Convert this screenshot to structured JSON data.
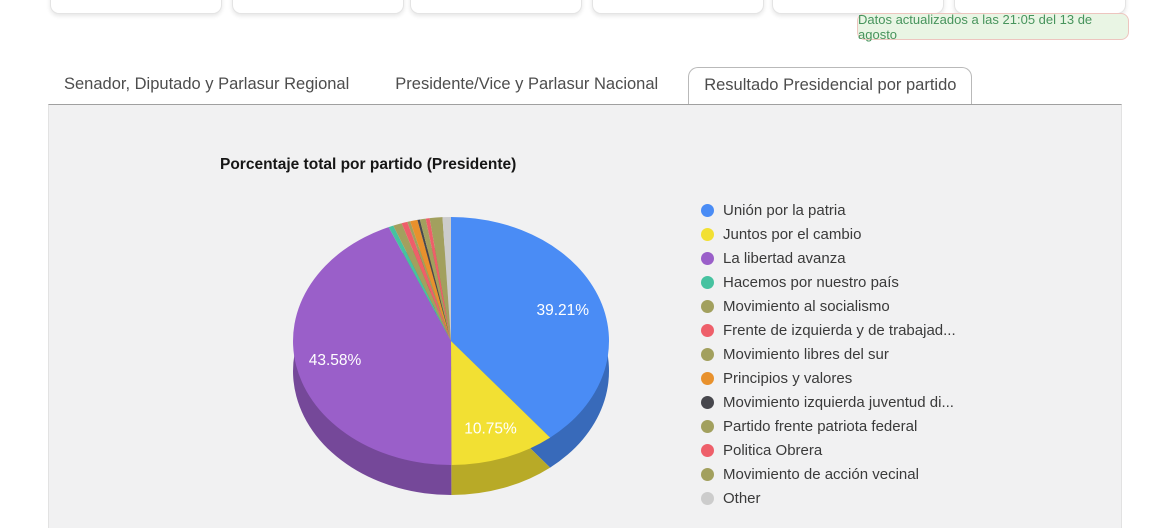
{
  "status_banner": {
    "text": "Datos actualizados a las 21:05 del 13 de agosto"
  },
  "tabs": [
    {
      "label": "Senador, Diputado y Parlasur Regional",
      "active": false
    },
    {
      "label": "Presidente/Vice y Parlasur Nacional",
      "active": false
    },
    {
      "label": "Resultado Presidencial por partido",
      "active": true
    }
  ],
  "chart_data": {
    "type": "pie",
    "is3d": true,
    "title": "Porcentaje total por partido (Presidente)",
    "unit": "%",
    "legend_position": "right",
    "slices": [
      {
        "label": "Unión por la patria",
        "value": 39.21,
        "display": "39.21%",
        "color": "#4a8cf5"
      },
      {
        "label": "Juntos por el cambio",
        "value": 10.75,
        "display": "10.75%",
        "color": "#f2e033"
      },
      {
        "label": "La libertad avanza",
        "value": 43.58,
        "display": "43.58%",
        "color": "#9a5fc9"
      },
      {
        "label": "Hacemos por nuestro país",
        "value": 0.5,
        "color": "#46c2a0"
      },
      {
        "label": "Movimiento al socialismo",
        "value": 0.9,
        "color": "#a2a05e"
      },
      {
        "label": "Frente de izquierda y de trabajad...",
        "value": 0.6,
        "color": "#ee5f6a"
      },
      {
        "label": "Movimiento libres del sur",
        "value": 0.3,
        "color": "#a2a05e"
      },
      {
        "label": "Principios y valores",
        "value": 0.75,
        "color": "#e8912d"
      },
      {
        "label": "Movimiento izquierda juventud di...",
        "value": 0.25,
        "color": "#47474d"
      },
      {
        "label": "Partido frente patriota federal",
        "value": 0.6,
        "color": "#a2a05e"
      },
      {
        "label": "Politica Obrera",
        "value": 0.4,
        "color": "#ee5f6a"
      },
      {
        "label": "Movimiento de acción vecinal",
        "value": 1.3,
        "color": "#a2a05e"
      },
      {
        "label": "Other",
        "value": 0.86,
        "color": "#cccccc"
      }
    ]
  }
}
